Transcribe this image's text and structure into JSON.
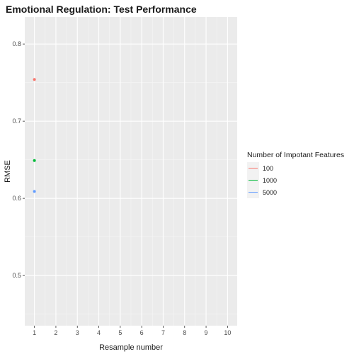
{
  "chart_data": {
    "type": "line",
    "title": "Emotional Regulation: Test Performance",
    "xlabel": "Resample number",
    "ylabel": "RMSE",
    "xlim": [
      0.55,
      10.45
    ],
    "ylim": [
      0.435,
      0.835
    ],
    "x_ticks": [
      1,
      2,
      3,
      4,
      5,
      6,
      7,
      8,
      9,
      10
    ],
    "y_ticks": [
      0.5,
      0.6,
      0.7,
      0.8
    ],
    "grid": true,
    "legend": {
      "title": "Number of Impotant Features",
      "position": "right"
    },
    "series": [
      {
        "name": "100",
        "color": "#F8766D",
        "x": [
          1
        ],
        "y": [
          0.754
        ]
      },
      {
        "name": "1000",
        "color": "#00BA38",
        "x": [
          1
        ],
        "y": [
          0.649
        ]
      },
      {
        "name": "5000",
        "color": "#619CFF",
        "x": [
          1
        ],
        "y": [
          0.609
        ]
      }
    ]
  }
}
